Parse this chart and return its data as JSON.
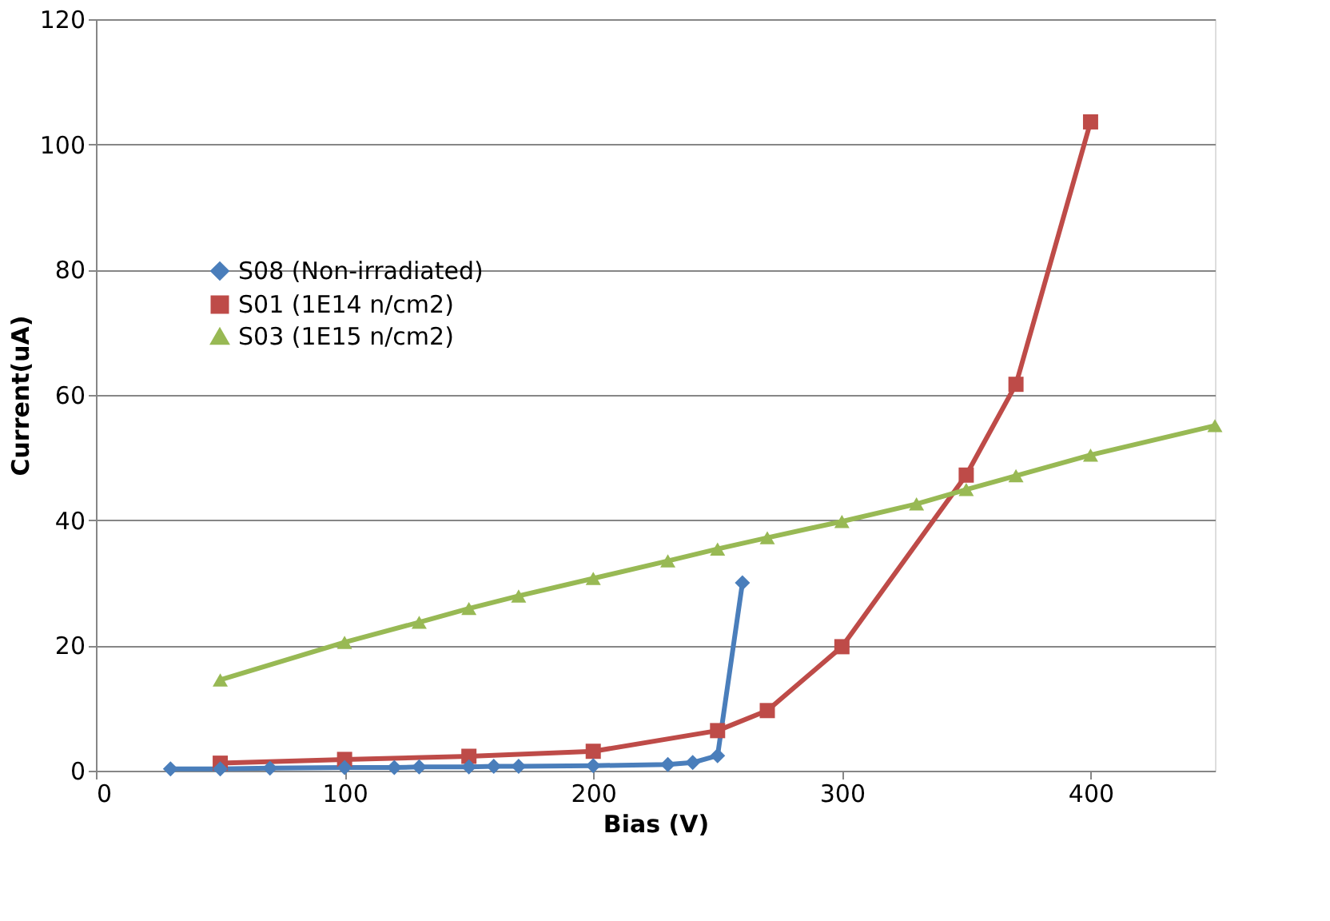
{
  "chart_data": {
    "type": "line",
    "xlabel": "Bias (V)",
    "ylabel": "Current(uA)",
    "xlim": [
      0,
      450
    ],
    "xticks": [
      0,
      100,
      200,
      300,
      400
    ],
    "ylim": [
      0,
      120
    ],
    "yticks": [
      0,
      20,
      40,
      60,
      80,
      100,
      120
    ],
    "grid": "y",
    "legend": "left",
    "line_style": "solid",
    "series": [
      {
        "name": "S08 (Non-irradiated)",
        "color": "#4a7ebb",
        "marker": "diamond",
        "x": [
          30,
          50,
          70,
          100,
          120,
          130,
          150,
          160,
          170,
          200,
          230,
          240,
          250,
          260
        ],
        "values": [
          0.3,
          0.3,
          0.4,
          0.5,
          0.5,
          0.6,
          0.6,
          0.7,
          0.7,
          0.8,
          1.0,
          1.3,
          2.4,
          30.0
        ]
      },
      {
        "name": "S01 (1E14 n/cm2)",
        "color": "#be4b48",
        "marker": "square",
        "x": [
          50,
          100,
          150,
          200,
          250,
          270,
          300,
          350,
          370,
          400
        ],
        "values": [
          1.2,
          1.8,
          2.3,
          3.1,
          6.4,
          9.6,
          19.8,
          47.2,
          61.7,
          103.6
        ]
      },
      {
        "name": "S03 (1E15 n/cm2)",
        "color": "#98b954",
        "marker": "triangle",
        "x": [
          50,
          100,
          130,
          150,
          170,
          200,
          230,
          250,
          270,
          300,
          330,
          350,
          370,
          400,
          450
        ],
        "values": [
          14.5,
          20.5,
          23.7,
          25.9,
          27.9,
          30.7,
          33.5,
          35.4,
          37.2,
          39.8,
          42.6,
          44.9,
          47.1,
          50.4,
          55.1
        ]
      }
    ]
  }
}
